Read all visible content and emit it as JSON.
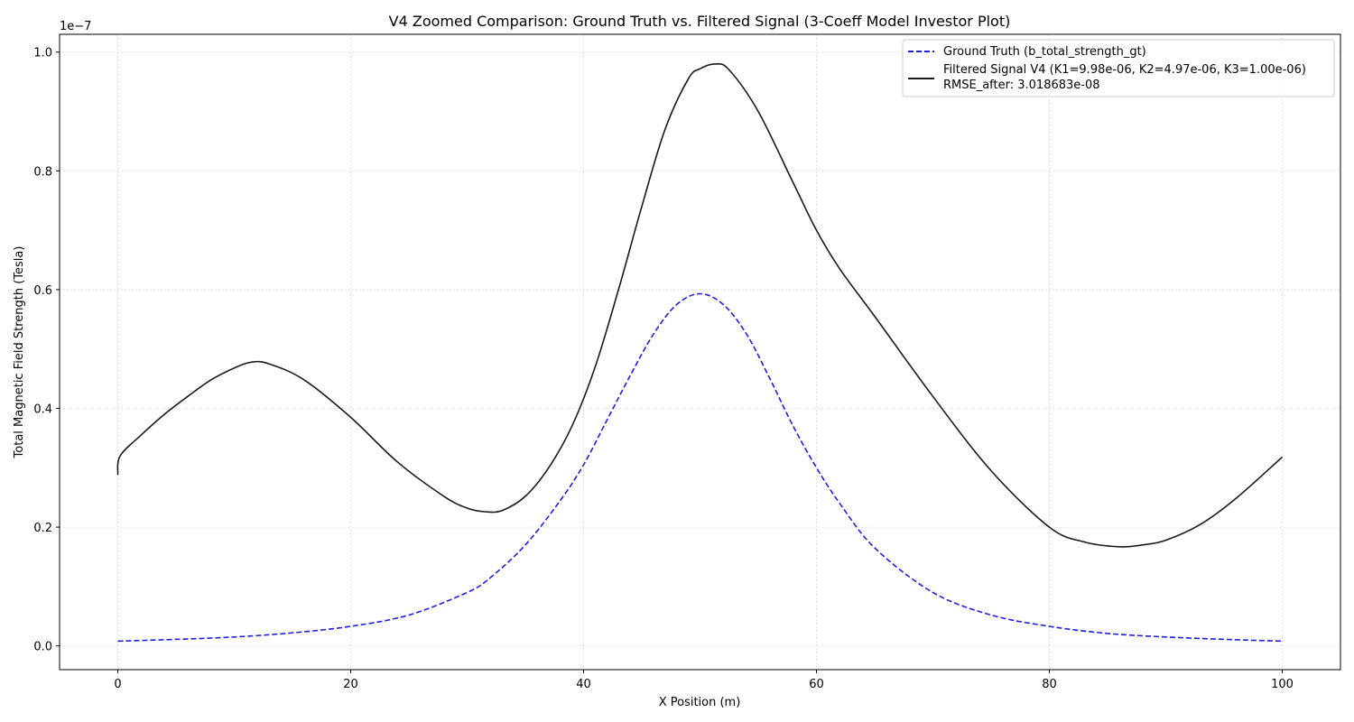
{
  "chart_data": {
    "type": "line",
    "title": "V4 Zoomed Comparison: Ground Truth vs. Filtered Signal (3-Coeff Model Investor Plot)",
    "xlabel": "X Position (m)",
    "ylabel": "Total Magnetic Field Strength (Tesla)",
    "y_scale_label": "1e−7",
    "xlim": [
      -5,
      105
    ],
    "ylim": [
      -0.04,
      1.03
    ],
    "xticks": [
      0,
      20,
      40,
      60,
      80,
      100
    ],
    "xtick_labels": [
      "0",
      "20",
      "40",
      "60",
      "80",
      "100"
    ],
    "yticks": [
      0.0,
      0.2,
      0.4,
      0.6,
      0.8,
      1.0
    ],
    "ytick_labels": [
      "0.0",
      "0.2",
      "0.4",
      "0.6",
      "0.8",
      "1.0"
    ],
    "grid": true,
    "legend_position": "top-right",
    "series": [
      {
        "name": "Ground Truth (b_total_strength_gt)",
        "color": "#1f1fe0",
        "line_style": "dashed",
        "x": [
          0,
          5,
          10,
          15,
          20,
          25,
          30,
          32,
          35,
          38,
          40,
          42,
          44,
          46,
          48,
          50,
          52,
          54,
          56,
          58,
          60,
          62,
          65,
          70,
          75,
          80,
          85,
          90,
          95,
          100
        ],
        "y": [
          0.008,
          0.011,
          0.015,
          0.022,
          0.033,
          0.052,
          0.09,
          0.115,
          0.17,
          0.245,
          0.305,
          0.38,
          0.455,
          0.525,
          0.575,
          0.593,
          0.575,
          0.525,
          0.45,
          0.37,
          0.3,
          0.24,
          0.165,
          0.09,
          0.052,
          0.033,
          0.021,
          0.015,
          0.011,
          0.008
        ]
      },
      {
        "name": "Filtered Signal V4 (K1=9.98e-06, K2=4.97e-06, K3=1.00e-06)",
        "name_line2": "RMSE_after: 3.018683e-08",
        "color": "#1a1a1a",
        "line_style": "solid",
        "x": [
          0,
          0.2,
          2,
          4,
          6,
          8,
          10,
          11.5,
          13,
          16,
          20,
          24,
          28,
          30,
          31.5,
          33,
          35,
          37,
          39,
          41,
          43,
          45,
          47,
          49,
          50,
          51.3,
          52.5,
          55,
          58,
          60,
          62,
          65,
          70,
          75,
          80,
          83,
          86,
          88,
          90,
          93,
          96,
          100
        ],
        "y": [
          0.288,
          0.32,
          0.355,
          0.39,
          0.42,
          0.448,
          0.468,
          0.478,
          0.475,
          0.448,
          0.385,
          0.31,
          0.252,
          0.232,
          0.226,
          0.228,
          0.252,
          0.3,
          0.37,
          0.47,
          0.6,
          0.74,
          0.87,
          0.955,
          0.972,
          0.98,
          0.97,
          0.9,
          0.78,
          0.7,
          0.635,
          0.555,
          0.42,
          0.295,
          0.2,
          0.175,
          0.167,
          0.17,
          0.178,
          0.205,
          0.248,
          0.318
        ]
      }
    ]
  }
}
